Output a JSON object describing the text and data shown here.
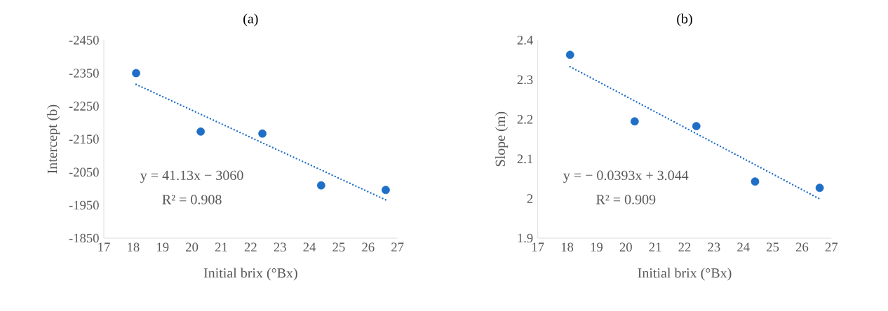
{
  "chart_data": [
    {
      "type": "scatter",
      "title": "(a)",
      "xlabel": "Initial brix (°Bx)",
      "ylabel": "Intercept (b)",
      "xlim": [
        17,
        27
      ],
      "xticks": [
        17,
        18,
        19,
        20,
        21,
        22,
        23,
        24,
        25,
        26,
        27
      ],
      "ylim": [
        -1850,
        -2450
      ],
      "yticks": [
        -2450,
        -2350,
        -2250,
        -2150,
        -2050,
        -1950,
        -1850
      ],
      "grid": false,
      "legend": false,
      "series": [
        {
          "color": "#1f6fc6",
          "marker": "circle",
          "x": [
            18.1,
            20.3,
            22.4,
            24.4,
            26.6
          ],
          "values": [
            -2350,
            -2173,
            -2167,
            -2010,
            -1996
          ]
        },
        {
          "type": "line",
          "color": "#1f6fc6",
          "line_style": "dotted",
          "marker": "none",
          "x": [
            18.1,
            26.6
          ],
          "values": [
            -2316,
            -1966
          ]
        }
      ],
      "annotations": [
        "y = 41.13x − 3060",
        "R² = 0.908"
      ]
    },
    {
      "type": "scatter",
      "title": "(b)",
      "xlabel": "Initial brix (°Bx)",
      "ylabel": "Slope (m)",
      "xlim": [
        17,
        27
      ],
      "xticks": [
        17,
        18,
        19,
        20,
        21,
        22,
        23,
        24,
        25,
        26,
        27
      ],
      "ylim": [
        1.9,
        2.4
      ],
      "yticks": [
        1.9,
        2,
        2.1,
        2.2,
        2.3,
        2.4
      ],
      "grid": false,
      "legend": false,
      "series": [
        {
          "color": "#1f6fc6",
          "marker": "circle",
          "x": [
            18.1,
            20.3,
            22.4,
            24.4,
            26.6
          ],
          "values": [
            2.363,
            2.195,
            2.183,
            2.043,
            2.027
          ]
        },
        {
          "type": "line",
          "color": "#1f6fc6",
          "line_style": "dotted",
          "marker": "none",
          "x": [
            18.1,
            26.6
          ],
          "values": [
            2.333,
            1.999
          ]
        }
      ],
      "annotations": [
        "y = − 0.0393x + 3.044",
        "R² = 0.909"
      ]
    }
  ]
}
